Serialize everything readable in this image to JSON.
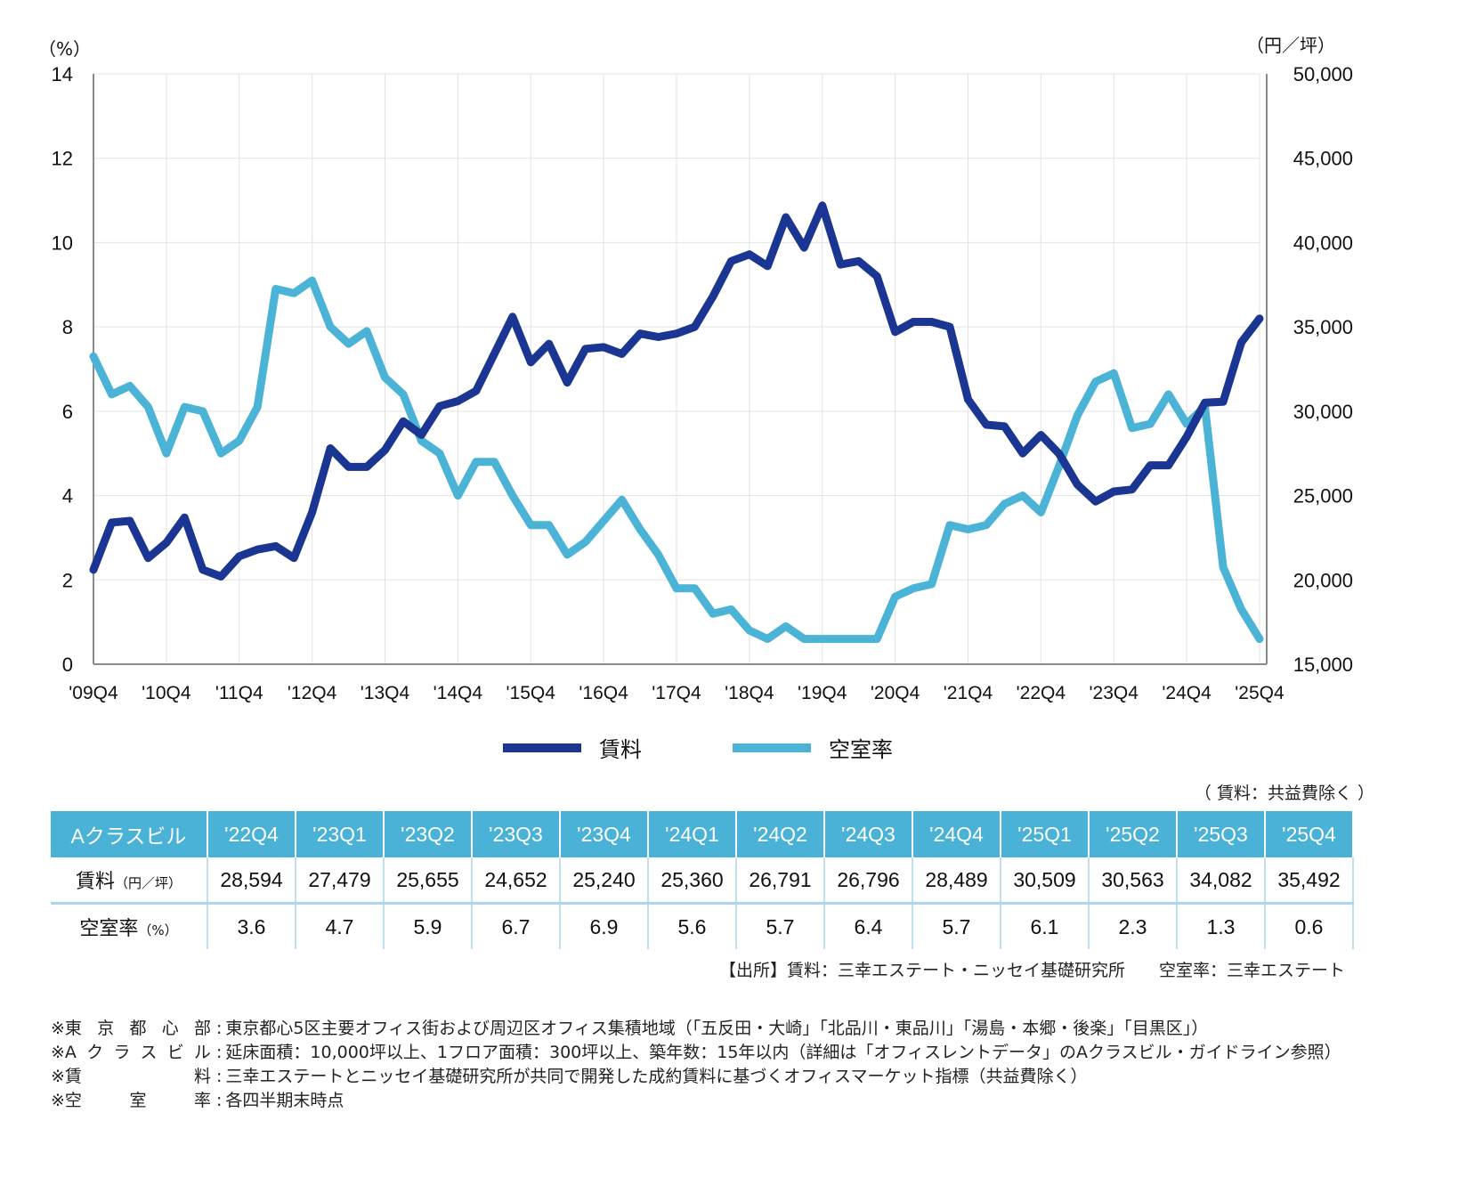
{
  "chart_data": {
    "type": "line",
    "title": "",
    "left_axis": {
      "unit_label": "（%）",
      "ylim": [
        0,
        14
      ],
      "ticks": [
        "0",
        "2",
        "4",
        "6",
        "8",
        "10",
        "12",
        "14"
      ]
    },
    "right_axis": {
      "unit_label": "（円／坪）",
      "ylim": [
        15000,
        50000
      ],
      "ticks": [
        "15,000",
        "20,000",
        "25,000",
        "30,000",
        "35,000",
        "40,000",
        "45,000",
        "50,000"
      ]
    },
    "x_tick_labels": [
      "'09Q4",
      "'10Q4",
      "'11Q4",
      "'12Q4",
      "'13Q4",
      "'14Q4",
      "'15Q4",
      "'16Q4",
      "'17Q4",
      "'18Q4",
      "'19Q4",
      "'20Q4",
      "'21Q4",
      "'22Q4",
      "'23Q4",
      "'24Q4",
      "'25Q4"
    ],
    "x": [
      "'09Q4",
      "'10Q1",
      "'10Q2",
      "'10Q3",
      "'10Q4",
      "'11Q1",
      "'11Q2",
      "'11Q3",
      "'11Q4",
      "'12Q1",
      "'12Q2",
      "'12Q3",
      "'12Q4",
      "'13Q1",
      "'13Q2",
      "'13Q3",
      "'13Q4",
      "'14Q1",
      "'14Q2",
      "'14Q3",
      "'14Q4",
      "'15Q1",
      "'15Q2",
      "'15Q3",
      "'15Q4",
      "'16Q1",
      "'16Q2",
      "'16Q3",
      "'16Q4",
      "'17Q1",
      "'17Q2",
      "'17Q3",
      "'17Q4",
      "'18Q1",
      "'18Q2",
      "'18Q3",
      "'18Q4",
      "'19Q1",
      "'19Q2",
      "'19Q3",
      "'19Q4",
      "'20Q1",
      "'20Q2",
      "'20Q3",
      "'20Q4",
      "'21Q1",
      "'21Q2",
      "'21Q3",
      "'21Q4",
      "'22Q1",
      "'22Q2",
      "'22Q3",
      "'22Q4",
      "'23Q1",
      "'23Q2",
      "'23Q3",
      "'23Q4",
      "'24Q1",
      "'24Q2",
      "'24Q3",
      "'24Q4",
      "'25Q1",
      "'25Q2",
      "'25Q3",
      "'25Q4"
    ],
    "series": [
      {
        "name": "賃料",
        "axis": "right",
        "color": "#1b3592",
        "values": [
          20600,
          23400,
          23500,
          21300,
          22200,
          23700,
          20600,
          20200,
          21400,
          21800,
          22000,
          21300,
          24000,
          27800,
          26700,
          26700,
          27700,
          29400,
          28600,
          30300,
          30600,
          31200,
          33400,
          35600,
          32900,
          34000,
          31700,
          33700,
          33800,
          33400,
          34600,
          34400,
          34600,
          35000,
          36800,
          38900,
          39300,
          38600,
          41500,
          39700,
          42200,
          38700,
          38900,
          38000,
          34700,
          35300,
          35300,
          35000,
          30700,
          29200,
          29100,
          27500,
          28594,
          27479,
          25655,
          24652,
          25240,
          25360,
          26791,
          26796,
          28489,
          30509,
          30563,
          34082,
          35492
        ]
      },
      {
        "name": "空室率",
        "axis": "left",
        "color": "#4ab3d6",
        "values": [
          7.3,
          6.4,
          6.6,
          6.1,
          5.0,
          6.1,
          6.0,
          5.0,
          5.3,
          6.1,
          8.9,
          8.8,
          9.1,
          8.0,
          7.6,
          7.9,
          6.8,
          6.4,
          5.3,
          5.0,
          4.0,
          4.8,
          4.8,
          4.0,
          3.3,
          3.3,
          2.6,
          2.9,
          3.4,
          3.9,
          3.2,
          2.6,
          1.8,
          1.8,
          1.2,
          1.3,
          0.8,
          0.6,
          0.9,
          0.6,
          0.6,
          0.6,
          0.6,
          0.6,
          1.6,
          1.8,
          1.9,
          3.3,
          3.2,
          3.3,
          3.8,
          4.0,
          3.6,
          4.7,
          5.9,
          6.7,
          6.9,
          5.6,
          5.7,
          6.4,
          5.7,
          6.1,
          2.3,
          1.3,
          0.6
        ]
      }
    ],
    "grid": true,
    "legend": "bottom-center"
  },
  "legend": {
    "rent": {
      "label": "賃料",
      "color": "#1b3592"
    },
    "vacancy": {
      "label": "空室率",
      "color": "#4ab3d6"
    }
  },
  "table": {
    "note": "（ 賃料：共益費除く ）",
    "corner_label": "Aクラスビル",
    "columns": [
      "'22Q4",
      "'23Q1",
      "'23Q2",
      "'23Q3",
      "'23Q4",
      "'24Q1",
      "'24Q2",
      "'24Q3",
      "'24Q4",
      "'25Q1",
      "'25Q2",
      "'25Q3",
      "'25Q4"
    ],
    "rows": [
      {
        "label": "賃料",
        "unit": "（円／坪）",
        "values": [
          "28,594",
          "27,479",
          "25,655",
          "24,652",
          "25,240",
          "25,360",
          "26,791",
          "26,796",
          "28,489",
          "30,509",
          "30,563",
          "34,082",
          "35,492"
        ]
      },
      {
        "label": "空室率",
        "unit": "（%）",
        "values": [
          "3.6",
          "4.7",
          "5.9",
          "6.7",
          "6.9",
          "5.6",
          "5.7",
          "6.4",
          "5.7",
          "6.1",
          "2.3",
          "1.3",
          "0.6"
        ]
      }
    ]
  },
  "source": "【出所】賃料：三幸エステート・ニッセイ基礎研究所　　空室率：三幸エステート",
  "footnotes": [
    {
      "key": [
        "※東",
        "京",
        "都",
        "心",
        "部"
      ],
      "text": "東京都心5区主要オフィス街および周辺区オフィス集積地域（「五反田・大崎」「北品川・東品川」「湯島・本郷・後楽」「目黒区」）"
    },
    {
      "key": [
        "※A",
        "ク",
        "ラ",
        "ス",
        "ビ",
        "ル"
      ],
      "text": "延床面積：10,000坪以上、1フロア面積：300坪以上、築年数：15年以内（詳細は「オフィスレントデータ」のAクラスビル・ガイドライン参照）"
    },
    {
      "key": [
        "※賃",
        "料"
      ],
      "text": "三幸エステートとニッセイ基礎研究所が共同で開発した成約賃料に基づくオフィスマーケット指標（共益費除く）"
    },
    {
      "key": [
        "※空",
        "室",
        "率"
      ],
      "text": "各四半期末時点"
    }
  ]
}
